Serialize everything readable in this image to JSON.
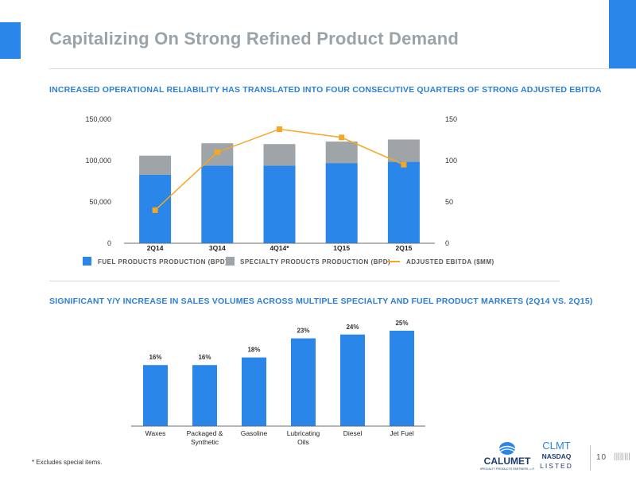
{
  "header": {
    "title": "Capitalizing On Strong Refined Product Demand"
  },
  "section1": {
    "title": "INCREASED OPERATIONAL RELIABILITY HAS TRANSLATED INTO FOUR CONSECUTIVE QUARTERS OF STRONG ADJUSTED EBITDA"
  },
  "section2": {
    "title": "SIGNIFICANT Y/Y INCREASE IN SALES VOLUMES ACROSS MULTIPLE SPECIALTY AND FUEL PRODUCT MARKETS (2Q14 VS. 2Q15)"
  },
  "chart_data": [
    {
      "type": "bar",
      "stacked": true,
      "categories": [
        "2Q14",
        "3Q14",
        "4Q14*",
        "1Q15",
        "2Q15"
      ],
      "series": [
        {
          "name": "FUEL PRODUCTS PRODUCTION (BPD)",
          "kind": "bar",
          "axis": "left",
          "values": [
            83000,
            94000,
            94000,
            97000,
            98500
          ]
        },
        {
          "name": "SPECIALTY PRODUCTS PRODUCTION (BPD)",
          "kind": "bar",
          "axis": "left",
          "values": [
            23000,
            27000,
            26000,
            26000,
            27000
          ]
        },
        {
          "name": "ADJUSTED EBITDA ($MM)",
          "kind": "line",
          "axis": "right",
          "values": [
            40,
            110,
            138,
            128,
            95
          ]
        }
      ],
      "y_left": {
        "min": 0,
        "max": 150000,
        "ticks": [
          0,
          50000,
          100000,
          150000
        ],
        "tick_labels": [
          "0",
          "50,000",
          "100,000",
          "150,000"
        ]
      },
      "y_right": {
        "min": 0,
        "max": 150,
        "ticks": [
          0,
          50,
          100,
          150
        ],
        "tick_labels": [
          "0",
          "50",
          "100",
          "150"
        ]
      },
      "legend_position": "bottom",
      "grid": false,
      "colors": {
        "fuel": "#2a86e8",
        "specialty": "#9ea4a7",
        "ebitda": "#f5a623"
      }
    },
    {
      "type": "bar",
      "categories": [
        "Waxes",
        "Packaged & Synthetic",
        "Gasoline",
        "Lubricating Oils",
        "Diesel",
        "Jet Fuel"
      ],
      "category_lines": [
        [
          "Waxes"
        ],
        [
          "Packaged &",
          "Synthetic"
        ],
        [
          "Gasoline"
        ],
        [
          "Lubricating",
          "Oils"
        ],
        [
          "Diesel"
        ],
        [
          "Jet Fuel"
        ]
      ],
      "values": [
        16,
        16,
        18,
        23,
        24,
        25
      ],
      "value_labels": [
        "16%",
        "16%",
        "18%",
        "23%",
        "24%",
        "25%"
      ],
      "unit": "%",
      "grid": false,
      "colors": {
        "bar": "#2a86e8"
      }
    }
  ],
  "footer": {
    "footnote": "* Excludes special items.",
    "logo_calumet": "CALUMET",
    "logo_calumet_sub": "SPECIALTY PRODUCTS PARTNERS, L.P.",
    "nasdaq_symbol": "CLMT",
    "nasdaq_name": "NASDAQ",
    "nasdaq_listed": "LISTED",
    "page_number": "10",
    "page_bars": "||||||||"
  },
  "colors": {
    "accent": "#2a86e8",
    "title_gray": "#9aa3a9",
    "section_blue": "#2a7fd9"
  }
}
